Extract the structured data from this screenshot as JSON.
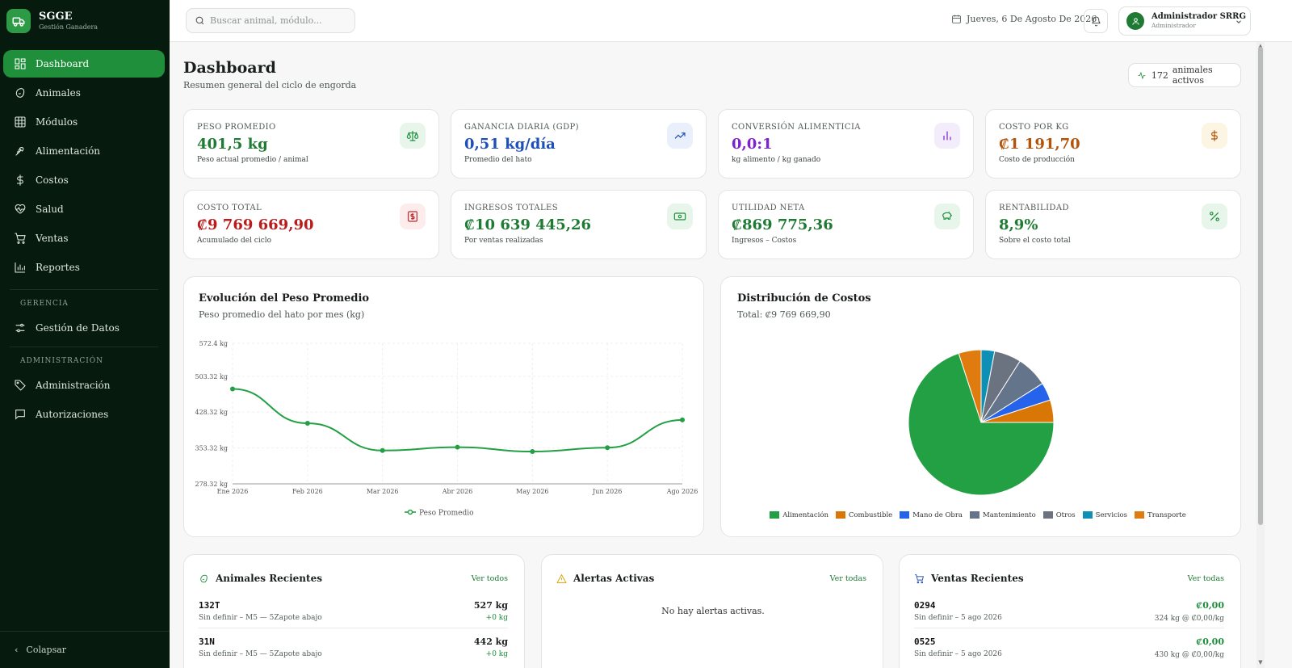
{
  "brand": {
    "name": "SGGE",
    "subtitle": "Gestión Ganadera"
  },
  "nav": {
    "items": [
      {
        "label": "Dashboard",
        "icon": "grid-icon",
        "active": true
      },
      {
        "label": "Animales",
        "icon": "paw-icon"
      },
      {
        "label": "Módulos",
        "icon": "table-icon"
      },
      {
        "label": "Alimentación",
        "icon": "wheat-icon"
      },
      {
        "label": "Costos",
        "icon": "dollar-icon"
      },
      {
        "label": "Salud",
        "icon": "heart-pulse-icon"
      },
      {
        "label": "Ventas",
        "icon": "cart-icon"
      },
      {
        "label": "Reportes",
        "icon": "bar-chart-icon"
      }
    ],
    "section_gerencia": "GERENCIA",
    "gerencia_items": [
      {
        "label": "Gestión de Datos",
        "icon": "sliders-icon"
      }
    ],
    "section_admin": "ADMINISTRACIÓN",
    "admin_items": [
      {
        "label": "Administración",
        "icon": "tag-icon"
      },
      {
        "label": "Autorizaciones",
        "icon": "message-icon"
      }
    ],
    "collapse_label": "Colapsar"
  },
  "topbar": {
    "search_placeholder": "Buscar animal, módulo...",
    "date": "Jueves, 6 De Agosto De 2026",
    "user_name": "Administrador SRRG",
    "user_role": "Administrador"
  },
  "page": {
    "title": "Dashboard",
    "subtitle": "Resumen general del ciclo de engorda",
    "active_count": "172",
    "active_label": "animales activos"
  },
  "kpis": [
    {
      "label": "PESO PROMEDIO",
      "value": "401,5 kg",
      "sub": "Peso actual promedio / animal",
      "color": "#1f7a33",
      "icon": "scale-icon",
      "icon_bg": "#e8f5ea",
      "icon_color": "#1f8f3c"
    },
    {
      "label": "GANANCIA DIARIA (GDP)",
      "value": "0,51 kg/día",
      "sub": "Promedio del hato",
      "color": "#1d4fb8",
      "icon": "trending-up-icon",
      "icon_bg": "#eaf0fb",
      "icon_color": "#1d4fb8"
    },
    {
      "label": "CONVERSIÓN ALIMENTICIA",
      "value": "0,0:1",
      "sub": "kg alimento / kg ganado",
      "color": "#7e22ce",
      "icon": "bar-chart-icon",
      "icon_bg": "#f3ecfb",
      "icon_color": "#7e22ce"
    },
    {
      "label": "COSTO POR KG",
      "value": "₡1 191,70",
      "sub": "Costo de producción",
      "color": "#b45309",
      "icon": "dollar-icon",
      "icon_bg": "#fdf5e4",
      "icon_color": "#b45309"
    },
    {
      "label": "COSTO TOTAL",
      "value": "₡9 769 669,90",
      "sub": "Acumulado del ciclo",
      "color": "#b91c1c",
      "icon": "receipt-icon",
      "icon_bg": "#fdecec",
      "icon_color": "#c42828"
    },
    {
      "label": "INGRESOS TOTALES",
      "value": "₡10 639 445,26",
      "sub": "Por ventas realizadas",
      "color": "#1f7a33",
      "icon": "banknote-icon",
      "icon_bg": "#e8f5ea",
      "icon_color": "#1f8f3c"
    },
    {
      "label": "UTILIDAD NETA",
      "value": "₡869 775,36",
      "sub": "Ingresos – Costos",
      "color": "#1f7a33",
      "icon": "piggy-bank-icon",
      "icon_bg": "#e8f5ea",
      "icon_color": "#1f8f3c"
    },
    {
      "label": "RENTABILIDAD",
      "value": "8,9%",
      "sub": "Sobre el costo total",
      "color": "#1f7a33",
      "icon": "percent-icon",
      "icon_bg": "#e8f5ea",
      "icon_color": "#1f8f3c"
    }
  ],
  "weight_chart": {
    "title": "Evolución del Peso Promedio",
    "subtitle": "Peso promedio del hato por mes (kg)",
    "legend": "Peso Promedio",
    "y_ticks": [
      "572.4 kg",
      "503.32 kg",
      "428.32 kg",
      "353.32 kg",
      "278.32 kg"
    ]
  },
  "chart_data": [
    {
      "type": "line",
      "title": "Evolución del Peso Promedio",
      "x": [
        "Ene 2026",
        "Feb 2026",
        "Mar 2026",
        "Abr 2026",
        "May 2026",
        "Jun 2026",
        "Ago 2026"
      ],
      "series": [
        {
          "name": "Peso Promedio",
          "values": [
            477,
            405,
            348,
            355,
            346,
            354,
            412
          ],
          "color": "#22a043"
        }
      ],
      "ylim": [
        278.32,
        572.4
      ],
      "grid": true,
      "legend": "bottom"
    },
    {
      "type": "pie",
      "title": "Distribución de Costos",
      "subtitle": "Total: ₡9 769 669,90",
      "labels": [
        "Alimentación",
        "Combustible",
        "Mano de Obra",
        "Mantenimiento",
        "Otros",
        "Servicios",
        "Transporte"
      ],
      "colors": [
        "#22a043",
        "#d97706",
        "#2563eb",
        "#64748b",
        "#6b7280",
        "#0e8fb5",
        "#e07b10"
      ],
      "draw_order": [
        0,
        1,
        2,
        3,
        4,
        5,
        6
      ],
      "pie_order_labels": [
        "Alimentación",
        "Transporte",
        "Servicios",
        "Otros",
        "Mantenimiento",
        "Mano de Obra",
        "Combustible"
      ],
      "values": [
        70.0,
        5.0,
        4.0,
        7.0,
        6.0,
        3.0,
        5.0
      ],
      "legend": "bottom"
    }
  ],
  "recent_animals": {
    "title": "Animales Recientes",
    "see_all": "Ver todos",
    "rows": [
      {
        "id": "132T",
        "desc": "Sin definir – M5 — 5Zapote abajo",
        "value": "527 kg",
        "delta": "+0 kg"
      },
      {
        "id": "31N",
        "desc": "Sin definir – M5 — 5Zapote abajo",
        "value": "442 kg",
        "delta": "+0 kg"
      }
    ]
  },
  "alerts": {
    "title": "Alertas Activas",
    "see_all": "Ver todas",
    "empty": "No hay alertas activas."
  },
  "recent_sales": {
    "title": "Ventas Recientes",
    "see_all": "Ver todas",
    "rows": [
      {
        "id": "0294",
        "desc": "Sin definir – 5 ago 2026",
        "value": "₡0,00",
        "detail": "324 kg @ ₡0,00/kg"
      },
      {
        "id": "0525",
        "desc": "Sin definir – 5 ago 2026",
        "value": "₡0,00",
        "detail": "430 kg @ ₡0,00/kg"
      }
    ]
  }
}
